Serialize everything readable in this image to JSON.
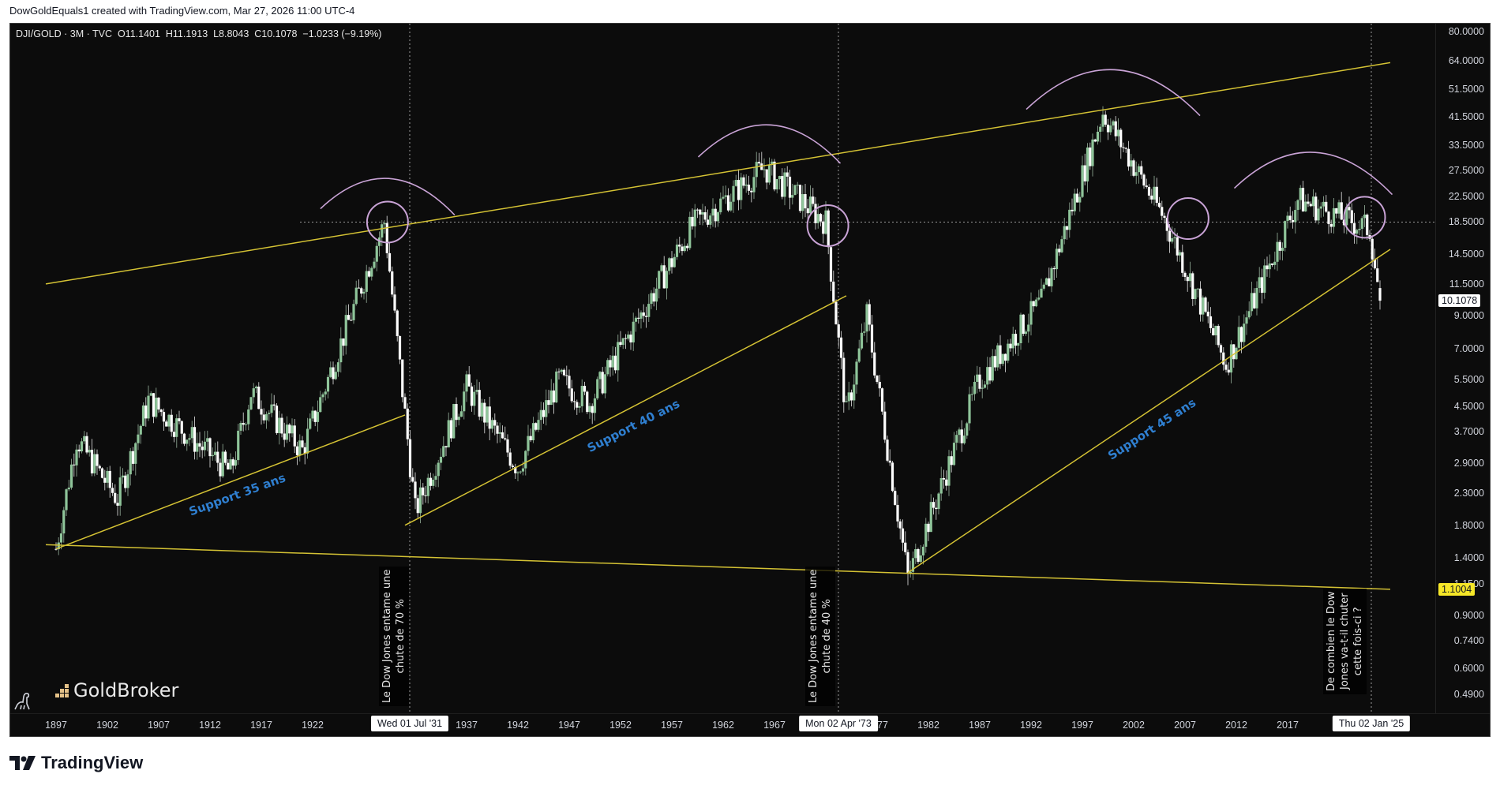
{
  "header": {
    "credit": "DowGoldEquals1 created with TradingView.com, Mar 27, 2026 11:00 UTC-4"
  },
  "legend": {
    "symbol": "DJI/GOLD · 3M · TVC",
    "open": "O11.1401",
    "high": "H11.1913",
    "low": "L8.8043",
    "close": "C10.1078",
    "change": "−1.0233 (−9.19%)",
    "text": "DJI/GOLD · 3M · TVC  O11.1401  H11.1913  L8.8043  C10.1078  −1.0233 (−9.19%)"
  },
  "price_axis": {
    "ticks": [
      "80.0000",
      "64.0000",
      "51.5000",
      "41.5000",
      "33.5000",
      "27.5000",
      "22.5000",
      "18.5000",
      "14.5000",
      "11.5000",
      "9.0000",
      "7.0000",
      "5.5000",
      "4.5000",
      "3.7000",
      "2.9000",
      "2.3000",
      "1.8000",
      "1.4000",
      "1.1500",
      "0.9000",
      "0.7400",
      "0.6000",
      "0.4900"
    ],
    "current_price": "10.1078",
    "line_price": "1.1004"
  },
  "time_axis": {
    "ticks": [
      "1897",
      "1902",
      "1907",
      "1912",
      "1917",
      "1922",
      "1927",
      "1937",
      "1942",
      "1947",
      "1952",
      "1957",
      "1962",
      "1967",
      "1977",
      "1982",
      "1987",
      "1992",
      "1997",
      "2002",
      "2007",
      "2012",
      "2017",
      "2022"
    ],
    "crosshair_tags": [
      "Wed 01 Jul '31",
      "Mon 02 Apr '73",
      "Thu 02 Jan '25"
    ]
  },
  "annotations": {
    "note_1931": "Le Dow Jones entame une\nchute de 70 %",
    "note_1973": "Le Dow Jones entame une\nchute de 40 %",
    "note_2025": "De combien le Dow\nJones va-t-il chuter\ncette fois-ci ?",
    "support_35": "Support 35 ans",
    "support_40": "Support 40 ans",
    "support_45": "Support 45 ans"
  },
  "branding": {
    "goldbroker": "GoldBroker",
    "tradingview": "TradingView"
  },
  "colors": {
    "background": "#0c0c0c",
    "up_candle": "#8fc59a",
    "down_candle": "#ffffff",
    "trendline": "#d4c234",
    "arc": "#c9a3d6",
    "support_text": "#2f7fd0"
  },
  "chart_data": {
    "type": "candlestick",
    "title": "DJI/GOLD · 3M · TVC",
    "scale": "log",
    "ylim": [
      0.49,
      80
    ],
    "xlabel": "",
    "ylabel": "",
    "grid": false,
    "x_range": [
      "1897",
      "2026"
    ],
    "anchor_points": [
      {
        "x": 1897,
        "y": 1.5
      },
      {
        "x": 1899,
        "y": 3.5
      },
      {
        "x": 1903,
        "y": 2.2
      },
      {
        "x": 1906,
        "y": 4.7
      },
      {
        "x": 1914,
        "y": 2.7
      },
      {
        "x": 1916,
        "y": 5.0
      },
      {
        "x": 1921,
        "y": 3.2
      },
      {
        "x": 1929,
        "y": 18.5
      },
      {
        "x": 1932,
        "y": 2.0
      },
      {
        "x": 1937,
        "y": 5.2
      },
      {
        "x": 1942,
        "y": 2.8
      },
      {
        "x": 1946,
        "y": 5.5
      },
      {
        "x": 1949,
        "y": 4.6
      },
      {
        "x": 1959,
        "y": 18.0
      },
      {
        "x": 1966,
        "y": 28.0
      },
      {
        "x": 1972,
        "y": 18.5
      },
      {
        "x": 1974,
        "y": 4.2
      },
      {
        "x": 1976,
        "y": 9.0
      },
      {
        "x": 1980,
        "y": 1.2
      },
      {
        "x": 1987,
        "y": 5.5
      },
      {
        "x": 1993,
        "y": 10.0
      },
      {
        "x": 1999,
        "y": 43.0
      },
      {
        "x": 2005,
        "y": 19.0
      },
      {
        "x": 2011,
        "y": 6.2
      },
      {
        "x": 2018,
        "y": 22.0
      },
      {
        "x": 2025,
        "y": 17.5
      },
      {
        "x": 2026,
        "y": 10.1
      }
    ],
    "last": {
      "open": 11.1401,
      "high": 11.1913,
      "low": 8.8043,
      "close": 10.1078,
      "change": -1.0233,
      "change_pct": -9.19
    },
    "trendlines": [
      {
        "name": "resistance",
        "from": {
          "x": 1896,
          "y": 11.5
        },
        "to": {
          "x": 2027,
          "y": 63
        }
      },
      {
        "name": "long-term support",
        "from": {
          "x": 1896,
          "y": 1.55
        },
        "to": {
          "x": 2027,
          "y": 1.1004
        }
      },
      {
        "name": "Support 35 ans",
        "from": {
          "x": 1897,
          "y": 1.5
        },
        "to": {
          "x": 1931,
          "y": 4.2
        }
      },
      {
        "name": "Support 40 ans",
        "from": {
          "x": 1931,
          "y": 1.8
        },
        "to": {
          "x": 1974,
          "y": 10.5
        }
      },
      {
        "name": "Support 45 ans",
        "from": {
          "x": 1980,
          "y": 1.25
        },
        "to": {
          "x": 2027,
          "y": 15
        }
      }
    ],
    "markers": [
      {
        "x": 1929,
        "y": 18.5,
        "type": "circle"
      },
      {
        "x": 1972,
        "y": 18.5,
        "type": "circle"
      },
      {
        "x": 2007,
        "y": 18.5,
        "type": "circle"
      },
      {
        "x": 2024,
        "y": 18.5,
        "type": "circle"
      }
    ],
    "horizontal_ref": 18.5,
    "vertical_refs": [
      "1931-07-01",
      "1973-04-02",
      "2025-01-02"
    ]
  }
}
